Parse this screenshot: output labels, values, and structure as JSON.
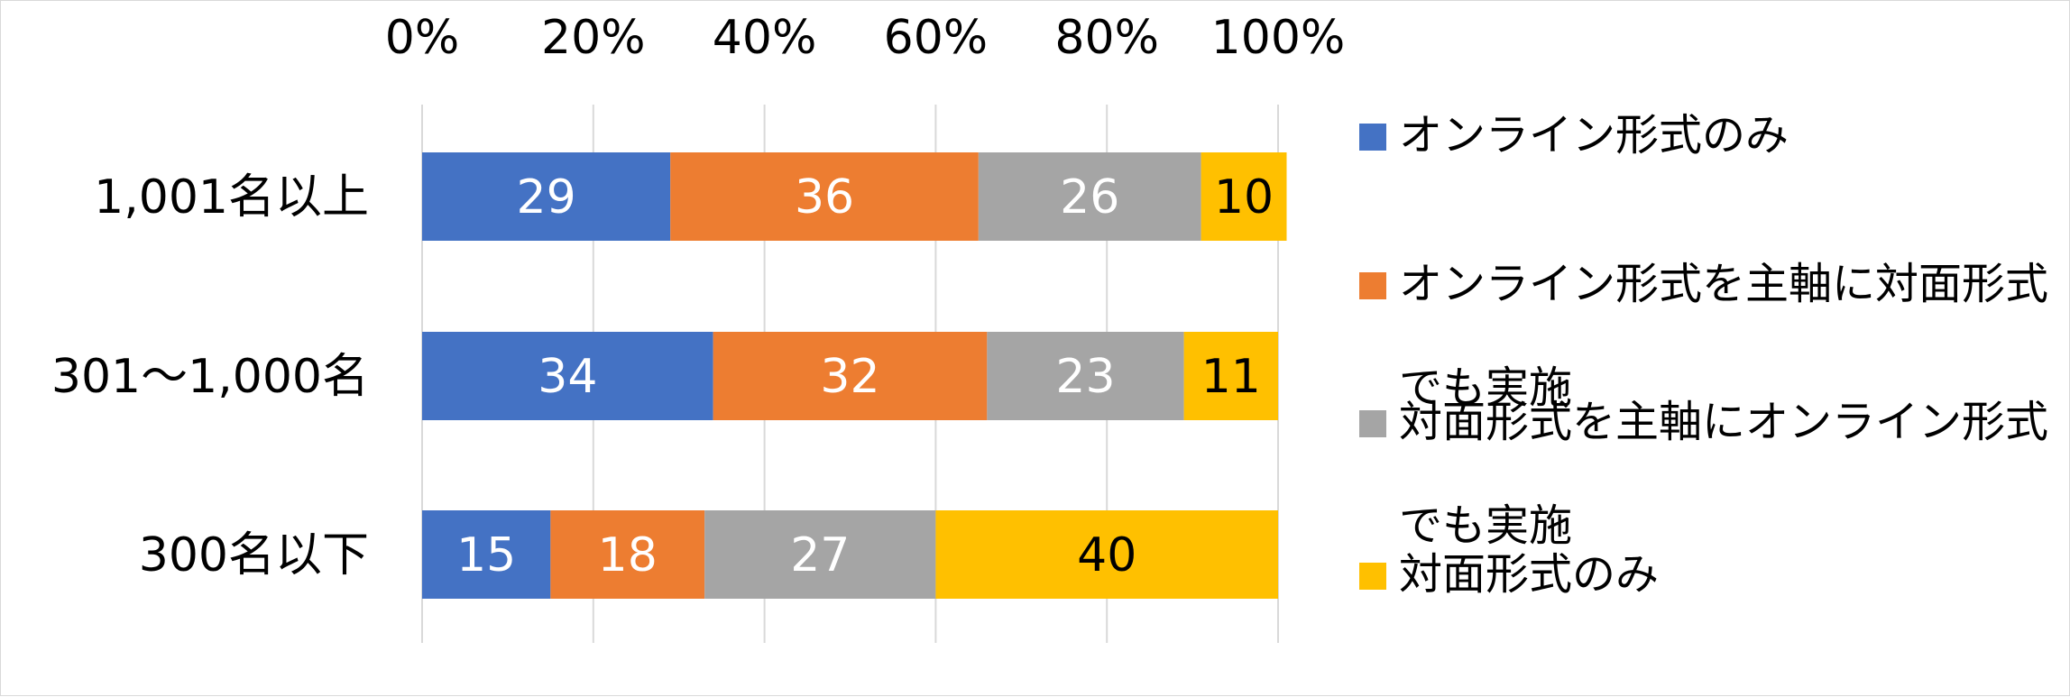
{
  "chart_data": {
    "type": "bar",
    "orientation": "horizontal",
    "stacked": true,
    "categories": [
      "1,001名以上",
      "301～1,000名",
      "300名以下"
    ],
    "series": [
      {
        "name": "オンライン形式のみ",
        "values": [
          29,
          34,
          15
        ],
        "color": "#4472c4",
        "label_color": "#ffffff"
      },
      {
        "name": "オンライン形式を主軸に対面形式でも実施",
        "values": [
          36,
          32,
          18
        ],
        "color": "#ed7d31",
        "label_color": "#ffffff"
      },
      {
        "name": "対面形式を主軸にオンライン形式でも実施",
        "values": [
          26,
          23,
          27
        ],
        "color": "#a5a5a5",
        "label_color": "#ffffff"
      },
      {
        "name": "対面形式のみ",
        "values": [
          10,
          11,
          40
        ],
        "color": "#ffc000",
        "label_color": "#000000"
      }
    ],
    "legend_lines": [
      [
        "オンライン形式のみ"
      ],
      [
        "オンライン形式を主軸に対面形式",
        "でも実施"
      ],
      [
        "対面形式を主軸にオンライン形式",
        "でも実施"
      ],
      [
        "対面形式のみ"
      ]
    ],
    "x_ticks": [
      "0%",
      "20%",
      "40%",
      "60%",
      "80%",
      "100%"
    ],
    "xlim": [
      0,
      100
    ],
    "xaxis_position": "top",
    "grid": true,
    "legend_position": "right"
  }
}
